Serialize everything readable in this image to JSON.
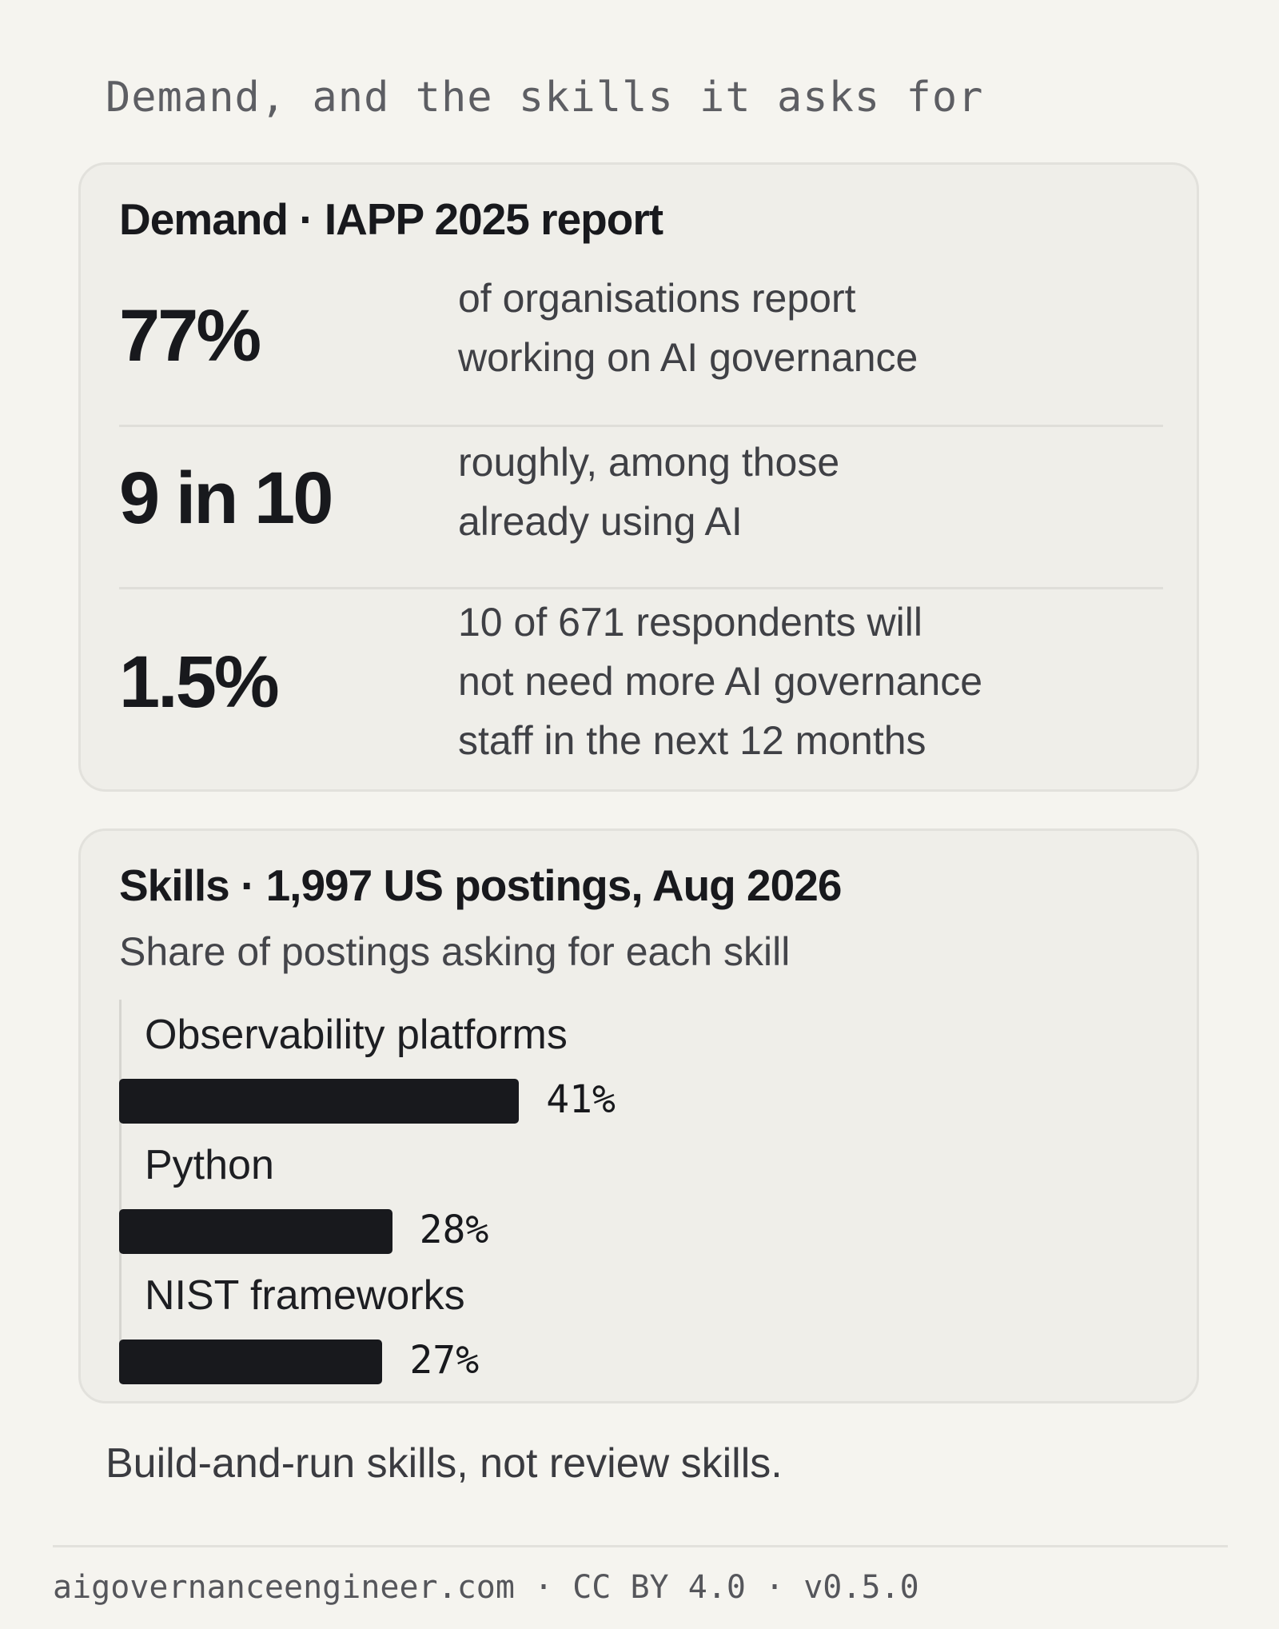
{
  "kicker": "Demand, and the skills it asks for",
  "demand": {
    "title": "Demand · IAPP 2025 report",
    "stats": [
      {
        "value": "77%",
        "lines": [
          "of organisations report",
          "working on AI governance"
        ]
      },
      {
        "value": "9 in 10",
        "lines": [
          "roughly, among those",
          "already using AI"
        ]
      },
      {
        "value": "1.5%",
        "lines": [
          "10 of 671 respondents will",
          "not need more AI governance",
          "staff in the next 12 months"
        ]
      }
    ]
  },
  "skills": {
    "title": "Skills · 1,997 US postings, Aug 2026",
    "subtitle": "Share of postings asking for each skill"
  },
  "chart_data": {
    "type": "bar",
    "orientation": "horizontal",
    "title": "Skills · 1,997 US postings, Aug 2026",
    "subtitle": "Share of postings asking for each skill",
    "categories": [
      "Observability platforms",
      "Python",
      "NIST frameworks"
    ],
    "values": [
      41,
      28,
      27
    ],
    "value_labels": [
      "41%",
      "28%",
      "27%"
    ],
    "xlim": [
      0,
      100
    ],
    "grid": false,
    "bar_color": "#18191d"
  },
  "takeaway": "Build-and-run skills, not review skills.",
  "footer": "aigovernanceengineer.com · CC BY 4.0 · v0.5.0",
  "colors": {
    "background": "#f5f4ef",
    "card": "#efeee9",
    "ink": "#18191d",
    "muted": "#5d5e63"
  }
}
